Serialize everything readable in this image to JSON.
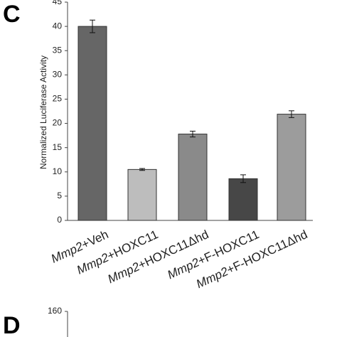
{
  "chart_data": [
    {
      "type": "bar",
      "panel": "C",
      "y_label": "Normalized Luciferase Activity",
      "categories": [
        "Mmp2+Veh",
        "Mmp2+HOXC11",
        "Mmp2+HOXC11Δhd",
        "Mmp2+F-HOXC11",
        "Mmp2+F-HOXC11Δhd"
      ],
      "values": [
        40,
        10.5,
        17.8,
        8.6,
        21.9
      ],
      "errors": [
        1.3,
        0.2,
        0.6,
        0.8,
        0.7
      ],
      "colors": [
        "#666666",
        "#bdbdbd",
        "#8a8a8a",
        "#474747",
        "#9c9c9c"
      ],
      "ylim": [
        0,
        45
      ],
      "yticks": [
        0,
        5,
        10,
        15,
        20,
        25,
        30,
        35,
        40,
        45
      ],
      "grid": false
    },
    {
      "type": "axis",
      "panel": "D",
      "yticks": [
        160
      ]
    }
  ]
}
